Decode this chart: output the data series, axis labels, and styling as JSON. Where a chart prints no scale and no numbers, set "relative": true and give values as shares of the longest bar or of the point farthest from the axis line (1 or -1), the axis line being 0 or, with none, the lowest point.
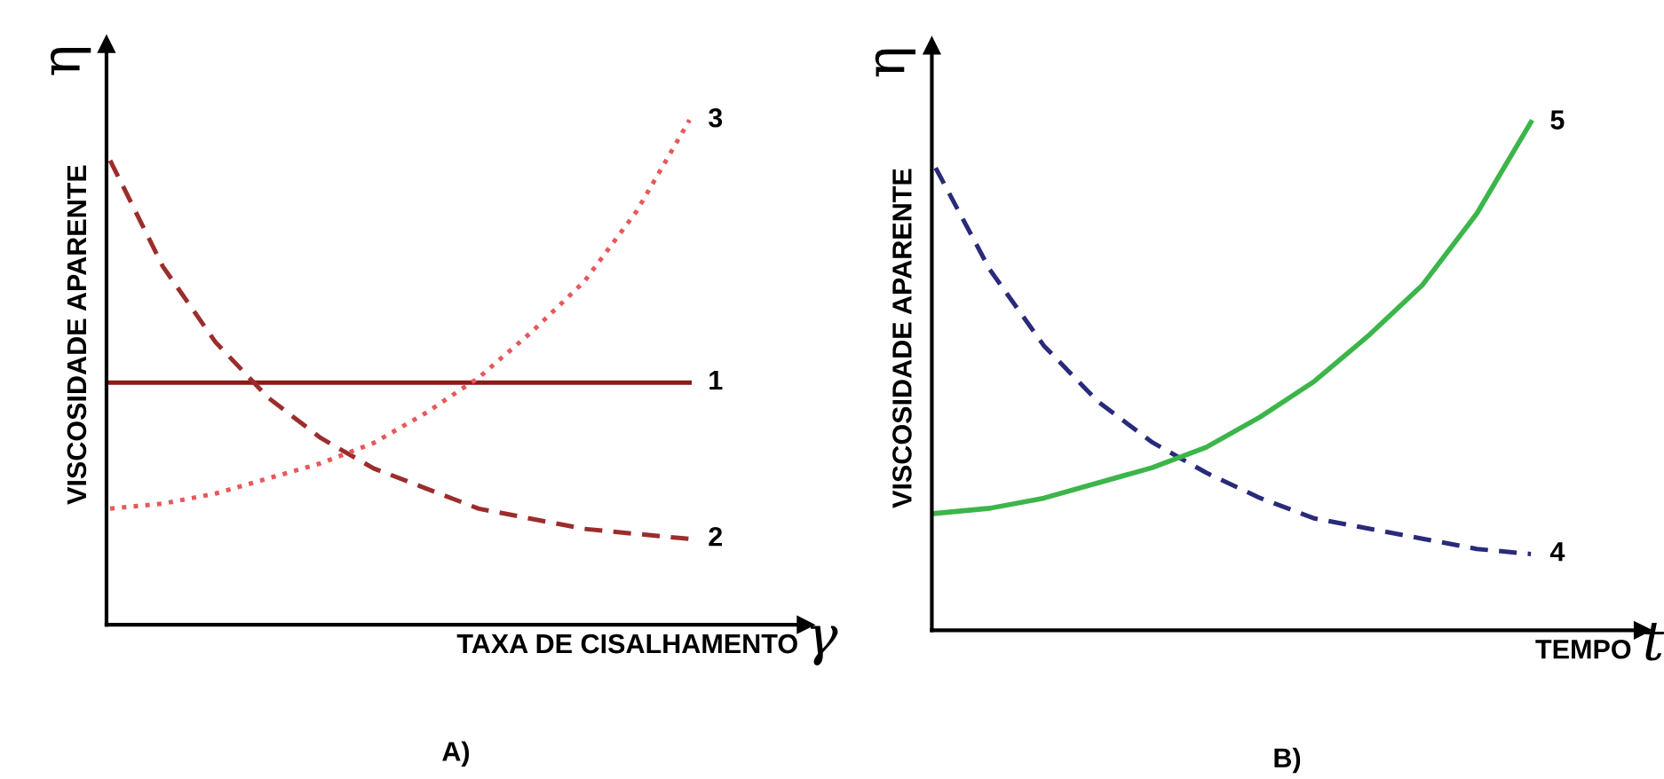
{
  "chart_data": [
    {
      "type": "line",
      "title": "A)",
      "xlabel": "TAXA DE CISALHAMENTO",
      "ylabel": "VISCOSIDADE APARENTE",
      "annotations": [
        "η",
        "γ"
      ],
      "relative": true,
      "categories": [
        null,
        null,
        null,
        null,
        null,
        null,
        null,
        null,
        null,
        null,
        null,
        null
      ],
      "series": [
        {
          "name": "1",
          "color": "#8b1a1a",
          "line_style": "solid",
          "values": [
            0.48,
            0.48,
            0.48,
            0.48,
            0.48,
            0.48,
            0.48,
            0.48,
            0.48,
            0.48,
            0.48,
            0.48
          ]
        },
        {
          "name": "2",
          "color": "#9b2d2d",
          "line_style": "dashed",
          "values": [
            0.92,
            0.71,
            0.56,
            0.45,
            0.37,
            0.31,
            0.27,
            0.23,
            0.21,
            0.19,
            0.18,
            0.17
          ]
        },
        {
          "name": "3",
          "color": "#e8585a",
          "line_style": "dotted",
          "values": [
            0.23,
            0.24,
            0.26,
            0.29,
            0.32,
            0.36,
            0.42,
            0.49,
            0.58,
            0.68,
            0.82,
            1.0
          ]
        }
      ]
    },
    {
      "type": "line",
      "title": "B)",
      "xlabel": "TEMPO",
      "ylabel": "VISCOSIDADE APARENTE",
      "annotations": [
        "η",
        "t"
      ],
      "relative": true,
      "categories": [
        null,
        null,
        null,
        null,
        null,
        null,
        null,
        null,
        null,
        null,
        null,
        null
      ],
      "series": [
        {
          "name": "4",
          "color": "#2a2a7a",
          "line_style": "dashed",
          "values": [
            0.91,
            0.71,
            0.56,
            0.45,
            0.37,
            0.31,
            0.26,
            0.22,
            0.2,
            0.18,
            0.16,
            0.15
          ]
        },
        {
          "name": "5",
          "color": "#3cb54a",
          "line_style": "solid",
          "values": [
            0.23,
            0.24,
            0.26,
            0.29,
            0.32,
            0.36,
            0.42,
            0.49,
            0.58,
            0.68,
            0.82,
            1.0
          ]
        }
      ]
    }
  ]
}
